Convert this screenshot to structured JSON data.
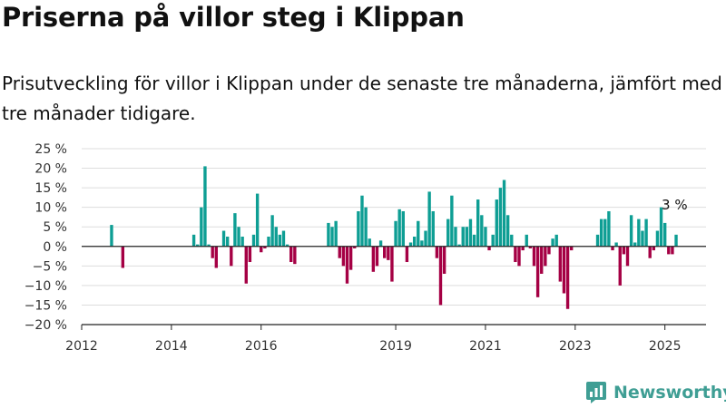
{
  "title": "Priserna på villor steg i Klippan",
  "subtitle": "Prisutveckling för villor i Klippan under de senaste tre månaderna, jämfört med tre månader tidigare.",
  "brand": {
    "name": "Newsworthy",
    "icon": "newsworthy-chart-icon",
    "color": "#3f9e94"
  },
  "colors": {
    "positive": "#0e9e94",
    "negative": "#a50044",
    "zero_line": "#222222",
    "grid": "#dddddd"
  },
  "chart_data": {
    "type": "bar",
    "title": "Priserna på villor steg i Klippan",
    "xlabel": "",
    "ylabel": "",
    "x_range": [
      "2012-01",
      "2025-12"
    ],
    "ylim": [
      -20,
      25
    ],
    "y_ticks": [
      25,
      20,
      15,
      10,
      5,
      0,
      -5,
      -10,
      -15,
      -20
    ],
    "y_tick_labels": [
      "25 %",
      "20 %",
      "15 %",
      "10 %",
      "5 %",
      "0 %",
      "−5 %",
      "−10 %",
      "−15 %",
      "−20 %"
    ],
    "x_ticks": [
      "2012-01",
      "2014-01",
      "2016-01",
      "2019-01",
      "2021-01",
      "2023-01",
      "2025-01"
    ],
    "x_tick_labels": [
      "2012",
      "2014",
      "2016",
      "2019",
      "2021",
      "2023",
      "2025"
    ],
    "grid": "horizontal",
    "annotation": {
      "text": "3 %",
      "date": "2025-04",
      "value": 3
    },
    "points": [
      [
        "2012-09",
        5.5
      ],
      [
        "2012-12",
        -5.5
      ],
      [
        "2014-07",
        3
      ],
      [
        "2014-08",
        0.5
      ],
      [
        "2014-09",
        10
      ],
      [
        "2014-10",
        20.5
      ],
      [
        "2014-11",
        0.5
      ],
      [
        "2014-12",
        -3
      ],
      [
        "2015-01",
        -5.5
      ],
      [
        "2015-03",
        4
      ],
      [
        "2015-04",
        2.5
      ],
      [
        "2015-05",
        -5
      ],
      [
        "2015-06",
        8.5
      ],
      [
        "2015-07",
        5
      ],
      [
        "2015-08",
        2.5
      ],
      [
        "2015-09",
        -9.5
      ],
      [
        "2015-10",
        -4
      ],
      [
        "2015-11",
        3
      ],
      [
        "2015-12",
        13.5
      ],
      [
        "2016-01",
        -1.5
      ],
      [
        "2016-02",
        -0.5
      ],
      [
        "2016-03",
        2.5
      ],
      [
        "2016-04",
        8
      ],
      [
        "2016-05",
        5
      ],
      [
        "2016-06",
        3
      ],
      [
        "2016-07",
        4
      ],
      [
        "2016-08",
        0.5
      ],
      [
        "2016-09",
        -4
      ],
      [
        "2016-10",
        -4.5
      ],
      [
        "2017-07",
        6
      ],
      [
        "2017-08",
        5
      ],
      [
        "2017-09",
        6.5
      ],
      [
        "2017-10",
        -3
      ],
      [
        "2017-11",
        -5
      ],
      [
        "2017-12",
        -9.5
      ],
      [
        "2018-01",
        -6
      ],
      [
        "2018-02",
        -0.5
      ],
      [
        "2018-03",
        9
      ],
      [
        "2018-04",
        13
      ],
      [
        "2018-05",
        10
      ],
      [
        "2018-06",
        2
      ],
      [
        "2018-07",
        -6.5
      ],
      [
        "2018-08",
        -5
      ],
      [
        "2018-09",
        1.5
      ],
      [
        "2018-10",
        -3
      ],
      [
        "2018-11",
        -3.5
      ],
      [
        "2018-12",
        -9
      ],
      [
        "2019-01",
        6.5
      ],
      [
        "2019-02",
        9.5
      ],
      [
        "2019-03",
        9
      ],
      [
        "2019-04",
        -4
      ],
      [
        "2019-05",
        1
      ],
      [
        "2019-06",
        2.5
      ],
      [
        "2019-07",
        6.5
      ],
      [
        "2019-08",
        1.5
      ],
      [
        "2019-09",
        4
      ],
      [
        "2019-10",
        14
      ],
      [
        "2019-11",
        9
      ],
      [
        "2019-12",
        -3
      ],
      [
        "2020-01",
        -15
      ],
      [
        "2020-02",
        -7
      ],
      [
        "2020-03",
        7
      ],
      [
        "2020-04",
        13
      ],
      [
        "2020-05",
        5
      ],
      [
        "2020-06",
        0.5
      ],
      [
        "2020-07",
        5
      ],
      [
        "2020-08",
        5
      ],
      [
        "2020-09",
        7
      ],
      [
        "2020-10",
        3
      ],
      [
        "2020-11",
        12
      ],
      [
        "2020-12",
        8
      ],
      [
        "2021-01",
        5
      ],
      [
        "2021-02",
        -1
      ],
      [
        "2021-03",
        3
      ],
      [
        "2021-04",
        12
      ],
      [
        "2021-05",
        15
      ],
      [
        "2021-06",
        17
      ],
      [
        "2021-07",
        8
      ],
      [
        "2021-08",
        3
      ],
      [
        "2021-09",
        -4
      ],
      [
        "2021-10",
        -5
      ],
      [
        "2021-11",
        -1
      ],
      [
        "2021-12",
        3
      ],
      [
        "2022-01",
        -0.5
      ],
      [
        "2022-02",
        -5
      ],
      [
        "2022-03",
        -13
      ],
      [
        "2022-04",
        -7
      ],
      [
        "2022-05",
        -5
      ],
      [
        "2022-06",
        -2
      ],
      [
        "2022-07",
        2
      ],
      [
        "2022-08",
        3
      ],
      [
        "2022-09",
        -9
      ],
      [
        "2022-10",
        -12
      ],
      [
        "2022-11",
        -16
      ],
      [
        "2022-12",
        -1
      ],
      [
        "2023-07",
        3
      ],
      [
        "2023-08",
        7
      ],
      [
        "2023-09",
        7
      ],
      [
        "2023-10",
        9
      ],
      [
        "2023-11",
        -1
      ],
      [
        "2023-12",
        1
      ],
      [
        "2024-01",
        -10
      ],
      [
        "2024-02",
        -2
      ],
      [
        "2024-03",
        -5
      ],
      [
        "2024-04",
        8
      ],
      [
        "2024-05",
        1
      ],
      [
        "2024-06",
        7
      ],
      [
        "2024-07",
        4
      ],
      [
        "2024-08",
        7
      ],
      [
        "2024-09",
        -3
      ],
      [
        "2024-10",
        -1
      ],
      [
        "2024-11",
        4
      ],
      [
        "2024-12",
        10
      ],
      [
        "2025-01",
        6
      ],
      [
        "2025-02",
        -2
      ],
      [
        "2025-03",
        -2
      ],
      [
        "2025-04",
        3
      ]
    ]
  }
}
